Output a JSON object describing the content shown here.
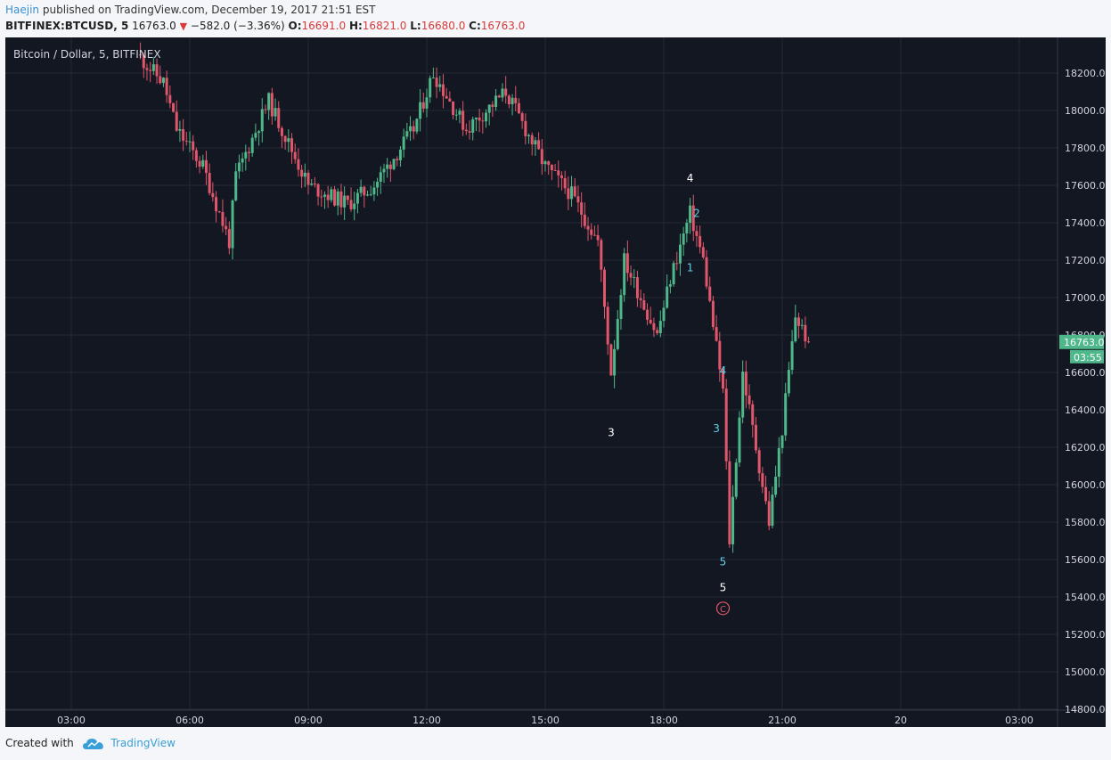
{
  "header": {
    "user": "Haejin",
    "published": " published on TradingView.com, December 19, 2017 21:51 EST",
    "symbol": "BITFINEX:BTCUSD, 5",
    "last": "16763.0",
    "change": "−582.0 (−3.36%)",
    "o_label": "O:",
    "o": "16691.0",
    "h_label": "H:",
    "h": "16821.0",
    "l_label": "L:",
    "l": "16680.0",
    "c_label": "C:",
    "c": "16763.0"
  },
  "footer": {
    "created": "Created with",
    "brand": "TradingView"
  },
  "chart_data": {
    "type": "candlestick",
    "title": "Bitcoin / Dollar, 5, BITFINEX",
    "price_tag": "16763.0",
    "countdown": "03:55",
    "ylim": [
      14800,
      18300
    ],
    "yticks": [
      14800,
      15000,
      15200,
      15400,
      15600,
      15800,
      16000,
      16200,
      16400,
      16600,
      16800,
      17000,
      17200,
      17400,
      17600,
      17800,
      18000,
      18200
    ],
    "xticks": [
      "03:00",
      "06:00",
      "09:00",
      "12:00",
      "15:00",
      "18:00",
      "21:00",
      "20",
      "03:00"
    ],
    "grid": true,
    "colors": {
      "up": "#4fb88a",
      "down": "#e0566a",
      "background": "#131722",
      "price_tag": "#4fb88a"
    },
    "series": [
      {
        "name": "price path",
        "x": [
          "04:40",
          "05:20",
          "05:40",
          "06:20",
          "07:00",
          "07:10",
          "08:00",
          "08:20",
          "09:00",
          "10:00",
          "10:40",
          "11:40",
          "12:10",
          "13:00",
          "14:00",
          "15:00",
          "15:40",
          "16:20",
          "16:40",
          "17:00",
          "17:50",
          "18:10",
          "18:40",
          "19:00",
          "19:30",
          "19:40",
          "20:00",
          "20:40",
          "21:00",
          "21:20",
          "21:40"
        ],
        "y": [
          18300,
          18150,
          17900,
          17700,
          17300,
          17650,
          18050,
          17900,
          17600,
          17500,
          17600,
          17900,
          18200,
          17900,
          18100,
          17700,
          17550,
          17300,
          16600,
          17200,
          16800,
          17100,
          17450,
          17200,
          16500,
          15700,
          16600,
          15800,
          16300,
          16900,
          16763
        ]
      }
    ],
    "annotations": [
      {
        "text": "4",
        "x": "18:40",
        "y": 17620,
        "color": "#ffffff"
      },
      {
        "text": "2",
        "x": "18:50",
        "y": 17430,
        "color": "#5fd0e6"
      },
      {
        "text": "1",
        "x": "18:40",
        "y": 17140,
        "color": "#5fd0e6"
      },
      {
        "text": "3",
        "x": "16:40",
        "y": 16260,
        "color": "#ffffff"
      },
      {
        "text": "4",
        "x": "19:30",
        "y": 16590,
        "color": "#5fd0e6"
      },
      {
        "text": "3",
        "x": "19:20",
        "y": 16280,
        "color": "#5fd0e6"
      },
      {
        "text": "5",
        "x": "19:30",
        "y": 15570,
        "color": "#5fd0e6"
      },
      {
        "text": "5",
        "x": "19:30",
        "y": 15430,
        "color": "#ffffff"
      },
      {
        "text": "C",
        "x": "19:30",
        "y": 15320,
        "color": "#e0566a",
        "circled": true
      }
    ]
  }
}
